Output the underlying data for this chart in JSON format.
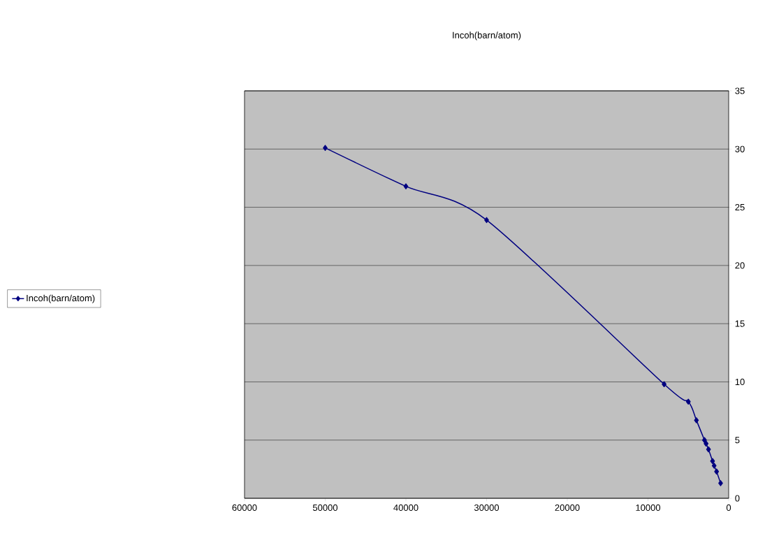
{
  "chart_data": {
    "type": "line",
    "title": "Incoh(barn/atom)",
    "x": [
      50000,
      40000,
      30000,
      8000,
      5000,
      4000,
      3000,
      2800,
      2500,
      2000,
      1800,
      1500,
      1000
    ],
    "series": [
      {
        "name": "Incoh(barn/atom)",
        "color": "#000080",
        "values": [
          30.1,
          26.8,
          23.9,
          9.8,
          8.3,
          6.7,
          5.0,
          4.7,
          4.2,
          3.2,
          2.8,
          2.3,
          1.3
        ]
      }
    ],
    "xlim": [
      60000,
      0
    ],
    "ylim": [
      0,
      35
    ],
    "xticks": [
      60000,
      50000,
      40000,
      30000,
      20000,
      10000,
      0
    ],
    "yticks": [
      0,
      5,
      10,
      15,
      20,
      25,
      30,
      35
    ],
    "grid": "y",
    "legend": "left",
    "marker": "diamond",
    "line_style": "solid"
  }
}
